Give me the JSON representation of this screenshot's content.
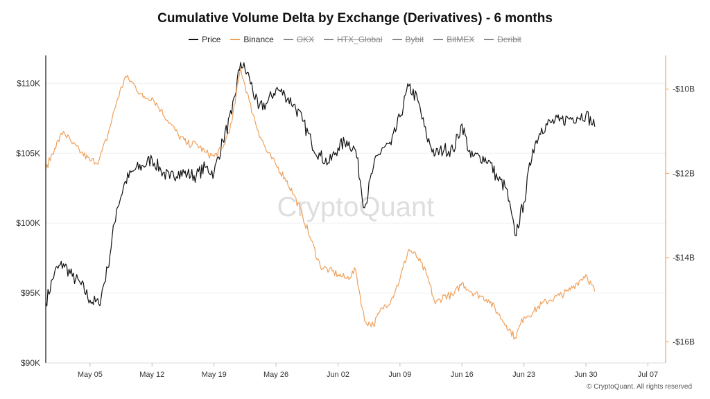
{
  "chart_data": {
    "type": "line",
    "title": "Cumulative Volume Delta by Exchange (Derivatives) - 6 months",
    "x_tick_labels": [
      "May 05",
      "May 12",
      "May 19",
      "May 26",
      "Jun 02",
      "Jun 09",
      "Jun 16",
      "Jun 23",
      "Jun 30",
      "Jul 07"
    ],
    "x_range": [
      "2025-04-30",
      "2025-07-09"
    ],
    "y_left": {
      "ticks": [
        "$90K",
        "$95K",
        "$100K",
        "$105K",
        "$110K"
      ],
      "range": [
        90000,
        112000
      ]
    },
    "y_right": {
      "ticks": [
        "-$16B",
        "-$14B",
        "-$12B",
        "-$10B"
      ],
      "range": [
        -16.5,
        -9.2
      ],
      "unit": "B"
    },
    "legend": [
      {
        "name": "Price",
        "color": "#111111",
        "visible": true
      },
      {
        "name": "Binance",
        "color": "#f0a05a",
        "visible": true
      },
      {
        "name": "OKX",
        "visible": false
      },
      {
        "name": "HTX_Global",
        "visible": false
      },
      {
        "name": "Bybit",
        "visible": false
      },
      {
        "name": "BitMEX",
        "visible": false
      },
      {
        "name": "Deribit",
        "visible": false
      }
    ],
    "series": [
      {
        "name": "Price",
        "axis": "left",
        "color": "#111111",
        "points": [
          [
            "2025-04-30",
            94300
          ],
          [
            "2025-05-01",
            96500
          ],
          [
            "2025-05-02",
            97100
          ],
          [
            "2025-05-03",
            96200
          ],
          [
            "2025-05-04",
            95600
          ],
          [
            "2025-05-05",
            94500
          ],
          [
            "2025-05-06",
            94200
          ],
          [
            "2025-05-07",
            96800
          ],
          [
            "2025-05-08",
            101000
          ],
          [
            "2025-05-09",
            103000
          ],
          [
            "2025-05-10",
            103800
          ],
          [
            "2025-05-11",
            104100
          ],
          [
            "2025-05-12",
            104600
          ],
          [
            "2025-05-13",
            103800
          ],
          [
            "2025-05-14",
            103200
          ],
          [
            "2025-05-15",
            103700
          ],
          [
            "2025-05-16",
            103500
          ],
          [
            "2025-05-17",
            103400
          ],
          [
            "2025-05-18",
            104000
          ],
          [
            "2025-05-19",
            103600
          ],
          [
            "2025-05-20",
            105900
          ],
          [
            "2025-05-21",
            107800
          ],
          [
            "2025-05-22",
            111500
          ],
          [
            "2025-05-23",
            110400
          ],
          [
            "2025-05-24",
            108200
          ],
          [
            "2025-05-25",
            108600
          ],
          [
            "2025-05-26",
            109600
          ],
          [
            "2025-05-27",
            109200
          ],
          [
            "2025-05-28",
            108500
          ],
          [
            "2025-05-29",
            107300
          ],
          [
            "2025-05-30",
            105800
          ],
          [
            "2025-05-31",
            104800
          ],
          [
            "2025-06-01",
            104300
          ],
          [
            "2025-06-02",
            105400
          ],
          [
            "2025-06-03",
            105900
          ],
          [
            "2025-06-04",
            105200
          ],
          [
            "2025-06-05",
            101100
          ],
          [
            "2025-06-06",
            104000
          ],
          [
            "2025-06-07",
            105400
          ],
          [
            "2025-06-08",
            105600
          ],
          [
            "2025-06-09",
            107600
          ],
          [
            "2025-06-10",
            109800
          ],
          [
            "2025-06-11",
            108800
          ],
          [
            "2025-06-12",
            106200
          ],
          [
            "2025-06-13",
            104900
          ],
          [
            "2025-06-14",
            105300
          ],
          [
            "2025-06-15",
            105200
          ],
          [
            "2025-06-16",
            107100
          ],
          [
            "2025-06-17",
            104700
          ],
          [
            "2025-06-18",
            104800
          ],
          [
            "2025-06-19",
            104500
          ],
          [
            "2025-06-20",
            103200
          ],
          [
            "2025-06-21",
            102500
          ],
          [
            "2025-06-22",
            99100
          ],
          [
            "2025-06-23",
            101500
          ],
          [
            "2025-06-24",
            105300
          ],
          [
            "2025-06-25",
            106800
          ],
          [
            "2025-06-26",
            107200
          ],
          [
            "2025-06-27",
            107300
          ],
          [
            "2025-06-28",
            107500
          ],
          [
            "2025-06-29",
            107600
          ],
          [
            "2025-06-30",
            107800
          ],
          [
            "2025-07-01",
            106900
          ]
        ]
      },
      {
        "name": "Binance",
        "axis": "right",
        "color": "#f0a05a",
        "points": [
          [
            "2025-04-30",
            -11.9
          ],
          [
            "2025-05-01",
            -11.4
          ],
          [
            "2025-05-02",
            -11.0
          ],
          [
            "2025-05-03",
            -11.3
          ],
          [
            "2025-05-04",
            -11.5
          ],
          [
            "2025-05-05",
            -11.7
          ],
          [
            "2025-05-06",
            -11.7
          ],
          [
            "2025-05-07",
            -11.1
          ],
          [
            "2025-05-08",
            -10.3
          ],
          [
            "2025-05-09",
            -9.7
          ],
          [
            "2025-05-10",
            -9.9
          ],
          [
            "2025-05-11",
            -10.2
          ],
          [
            "2025-05-12",
            -10.2
          ],
          [
            "2025-05-13",
            -10.5
          ],
          [
            "2025-05-14",
            -10.8
          ],
          [
            "2025-05-15",
            -11.1
          ],
          [
            "2025-05-16",
            -11.3
          ],
          [
            "2025-05-17",
            -11.3
          ],
          [
            "2025-05-18",
            -11.5
          ],
          [
            "2025-05-19",
            -11.6
          ],
          [
            "2025-05-20",
            -11.4
          ],
          [
            "2025-05-21",
            -10.8
          ],
          [
            "2025-05-22",
            -9.5
          ],
          [
            "2025-05-23",
            -10.3
          ],
          [
            "2025-05-24",
            -11.0
          ],
          [
            "2025-05-25",
            -11.5
          ],
          [
            "2025-05-26",
            -11.8
          ],
          [
            "2025-05-27",
            -12.1
          ],
          [
            "2025-05-28",
            -12.5
          ],
          [
            "2025-05-29",
            -13.0
          ],
          [
            "2025-05-30",
            -13.6
          ],
          [
            "2025-05-31",
            -14.2
          ],
          [
            "2025-06-01",
            -14.3
          ],
          [
            "2025-06-02",
            -14.4
          ],
          [
            "2025-06-03",
            -14.5
          ],
          [
            "2025-06-04",
            -14.3
          ],
          [
            "2025-06-05",
            -15.5
          ],
          [
            "2025-06-06",
            -15.6
          ],
          [
            "2025-06-07",
            -15.2
          ],
          [
            "2025-06-08",
            -15.0
          ],
          [
            "2025-06-09",
            -14.5
          ],
          [
            "2025-06-10",
            -13.8
          ],
          [
            "2025-06-11",
            -14.0
          ],
          [
            "2025-06-12",
            -14.4
          ],
          [
            "2025-06-13",
            -15.1
          ],
          [
            "2025-06-14",
            -14.9
          ],
          [
            "2025-06-15",
            -14.9
          ],
          [
            "2025-06-16",
            -14.6
          ],
          [
            "2025-06-17",
            -14.8
          ],
          [
            "2025-06-18",
            -14.9
          ],
          [
            "2025-06-19",
            -15.0
          ],
          [
            "2025-06-20",
            -15.3
          ],
          [
            "2025-06-21",
            -15.6
          ],
          [
            "2025-06-22",
            -15.9
          ],
          [
            "2025-06-23",
            -15.4
          ],
          [
            "2025-06-24",
            -15.3
          ],
          [
            "2025-06-25",
            -15.1
          ],
          [
            "2025-06-26",
            -15.0
          ],
          [
            "2025-06-27",
            -14.9
          ],
          [
            "2025-06-28",
            -14.8
          ],
          [
            "2025-06-29",
            -14.6
          ],
          [
            "2025-06-30",
            -14.4
          ],
          [
            "2025-07-01",
            -14.8
          ]
        ]
      }
    ],
    "watermark": "CryptoQuant",
    "grid": true
  },
  "copyright": "© CryptoQuant. All rights reserved"
}
